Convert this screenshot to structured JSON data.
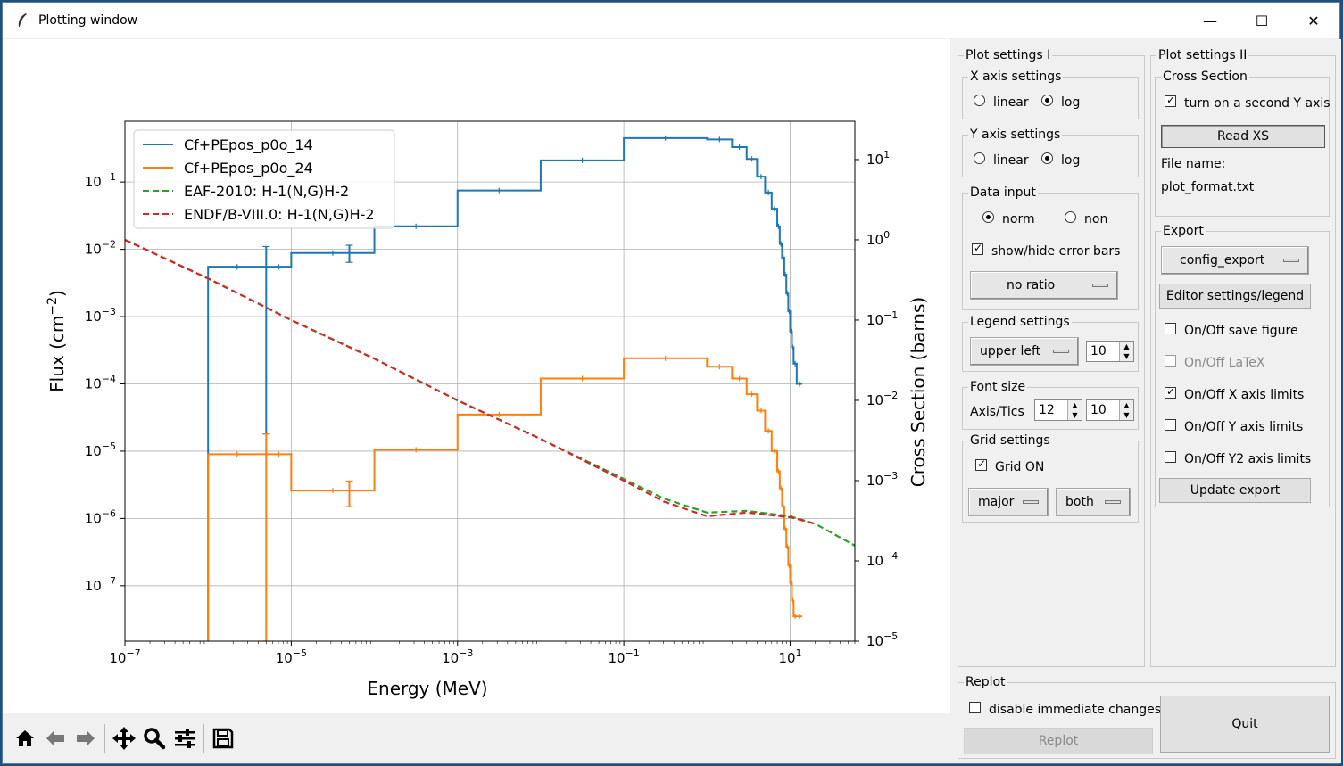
{
  "window": {
    "title": "Plotting window",
    "minimize": "—",
    "maximize": "☐",
    "close": "✕"
  },
  "toolbar": [
    "home-icon",
    "back-icon",
    "forward-icon",
    "pan-icon",
    "zoom-icon",
    "configure-subplots-icon",
    "save-icon"
  ],
  "panel1": {
    "title": "Plot settings I",
    "x_axis": {
      "title": "X axis settings",
      "linear": "linear",
      "log": "log",
      "selected": "log"
    },
    "y_axis": {
      "title": "Y axis settings",
      "linear": "linear",
      "log": "log",
      "selected": "log"
    },
    "data_input": {
      "title": "Data input",
      "norm": "norm",
      "non": "non",
      "selected": "norm",
      "error_bars": "show/hide error bars",
      "error_bars_on": true,
      "ratio": "no ratio"
    },
    "legend": {
      "title": "Legend settings",
      "position": "upper left",
      "size": "10"
    },
    "font": {
      "title": "Font size",
      "label": "Axis/Tics",
      "axis": "12",
      "tics": "10"
    },
    "grid": {
      "title": "Grid settings",
      "grid_on": "Grid ON",
      "grid_on_checked": true,
      "which": "major",
      "axis": "both"
    }
  },
  "panel2": {
    "title": "Plot settings II",
    "xs": {
      "title": "Cross Section",
      "second_y": "turn on a second Y axis",
      "second_y_checked": true,
      "read": "Read XS",
      "file_label": "File name:",
      "file": "plot_format.txt"
    },
    "export": {
      "title": "Export",
      "config": "config_export",
      "editor": "Editor settings/legend",
      "save_fig": "On/Off save figure",
      "latex": "On/Off LaTeX",
      "xlim": "On/Off X axis limits",
      "ylim": "On/Off Y axis limits",
      "y2lim": "On/Off Y2 axis limits",
      "update": "Update export"
    }
  },
  "replot": {
    "title": "Replot",
    "disable": "disable immediate changes",
    "replot_btn": "Replot",
    "quit": "Quit"
  },
  "chart_data": {
    "type": "line",
    "xlabel": "Energy (MeV)",
    "ylabel": "Flux (cm$^{-2}$)",
    "y2label": "Cross Section (barns)",
    "xscale": "log",
    "yscale": "log",
    "y2scale": "log",
    "xlim": [
      1e-07,
      60
    ],
    "ylim": [
      1.5e-08,
      0.8
    ],
    "y2lim": [
      1e-05,
      30
    ],
    "grid": true,
    "legend_position": "upper left",
    "x_ticks": [
      "10$^{-7}$",
      "10$^{-5}$",
      "10$^{-3}$",
      "10$^{-1}$",
      "10$^{1}$"
    ],
    "y_ticks": [
      "10$^{-7}$",
      "10$^{-6}$",
      "10$^{-5}$",
      "10$^{-4}$",
      "10$^{-3}$",
      "10$^{-2}$",
      "10$^{-1}$"
    ],
    "y2_ticks": [
      "10$^{-5}$",
      "10$^{-4}$",
      "10$^{-3}$",
      "10$^{-2}$",
      "10$^{-1}$",
      "10$^{0}$",
      "10$^{1}$"
    ],
    "series": [
      {
        "name": "Cf+PEpos_p0o_14",
        "color": "#1f77b4",
        "axis": "y",
        "style": "steps",
        "edges": [
          1e-06,
          5e-06,
          1e-05,
          0.0001,
          0.001,
          0.01,
          0.1,
          1,
          2,
          3,
          4,
          5,
          6,
          7,
          7.5,
          8,
          8.5,
          9,
          9.5,
          10,
          10.5,
          11,
          12,
          14
        ],
        "values": [
          0.0055,
          0.0055,
          0.0088,
          0.022,
          0.075,
          0.21,
          0.45,
          0.43,
          0.33,
          0.22,
          0.12,
          0.07,
          0.04,
          0.022,
          0.012,
          0.0075,
          0.0042,
          0.0022,
          0.0012,
          0.0006,
          0.00035,
          0.0002,
          0.0001
        ],
        "errbars": [
          [
            5e-06,
            0.0055,
            0.011,
            1.8e-05
          ],
          [
            5e-05,
            0.0088,
            0.0115,
            0.0064
          ]
        ]
      },
      {
        "name": "Cf+PEpos_p0o_24",
        "color": "#ff7f0e",
        "axis": "y",
        "style": "steps",
        "edges": [
          1e-06,
          5e-06,
          1e-05,
          0.0001,
          0.001,
          0.01,
          0.1,
          1,
          2,
          3,
          4,
          5,
          6,
          7,
          7.5,
          8,
          8.5,
          9,
          9.5,
          10,
          10.5,
          11,
          12,
          14
        ],
        "values": [
          9e-06,
          9e-06,
          2.6e-06,
          1.05e-05,
          3.5e-05,
          0.00012,
          0.00024,
          0.00018,
          0.00012,
          7e-05,
          4e-05,
          2e-05,
          1e-05,
          5e-06,
          2.8e-06,
          1.5e-06,
          7e-07,
          3.8e-07,
          2e-07,
          1.1e-07,
          6e-08,
          3.5e-08,
          3.5e-08
        ],
        "errbars": [
          [
            5e-06,
            9e-06,
            1.8e-05,
            1.5e-08
          ],
          [
            5e-05,
            2.6e-06,
            3.6e-06,
            1.5e-06
          ]
        ]
      },
      {
        "name": "EAF-2010: H-1(N,G)H-2",
        "color": "#2ca02c",
        "axis": "y2",
        "style": "dashed",
        "x": [
          1e-07,
          1e-06,
          1e-05,
          0.0001,
          0.001,
          0.01,
          0.1,
          0.3,
          1,
          3,
          10,
          20,
          60
        ],
        "y": [
          1.0,
          0.33,
          0.1,
          0.033,
          0.01,
          0.0033,
          0.00105,
          0.0006,
          0.0004,
          0.00042,
          0.00036,
          0.00029,
          0.000155
        ]
      },
      {
        "name": "ENDF/B-VIII.0: H-1(N,G)H-2",
        "color": "#d62728",
        "axis": "y2",
        "style": "dashed",
        "x": [
          1e-07,
          1e-06,
          1e-05,
          0.0001,
          0.001,
          0.01,
          0.1,
          0.3,
          1,
          3,
          10,
          20
        ],
        "y": [
          1.0,
          0.33,
          0.1,
          0.033,
          0.01,
          0.0033,
          0.001,
          0.00055,
          0.00036,
          0.0004,
          0.00035,
          0.00029
        ]
      }
    ]
  }
}
